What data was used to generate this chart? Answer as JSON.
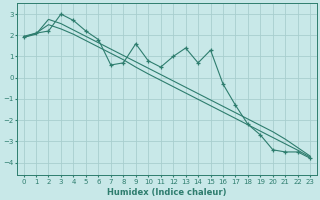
{
  "xlabel": "Humidex (Indice chaleur)",
  "ylabel": "",
  "background_color": "#c8e8e8",
  "grid_color": "#a8cece",
  "line_color": "#2e7d6e",
  "xlim": [
    -0.5,
    23.5
  ],
  "ylim": [
    -4.6,
    3.5
  ],
  "yticks": [
    -4,
    -3,
    -2,
    -1,
    0,
    1,
    2,
    3
  ],
  "xticks": [
    0,
    1,
    2,
    3,
    4,
    5,
    6,
    7,
    8,
    9,
    10,
    11,
    12,
    13,
    14,
    15,
    16,
    17,
    18,
    19,
    20,
    21,
    22,
    23
  ],
  "x_main": [
    0,
    1,
    2,
    3,
    4,
    5,
    6,
    7,
    8,
    9,
    10,
    11,
    12,
    13,
    14,
    15,
    16,
    17,
    18,
    19,
    20,
    21,
    22,
    23
  ],
  "y_main": [
    1.9,
    2.1,
    2.2,
    3.0,
    2.7,
    2.2,
    1.8,
    0.6,
    0.7,
    1.6,
    0.8,
    0.5,
    1.0,
    1.4,
    0.7,
    1.3,
    -0.3,
    -1.3,
    -2.2,
    -2.7,
    -3.4,
    -3.5,
    -3.5,
    -3.8
  ],
  "y_line1": [
    1.9,
    2.05,
    2.75,
    2.55,
    2.25,
    1.95,
    1.65,
    1.35,
    1.05,
    0.75,
    0.45,
    0.15,
    -0.15,
    -0.45,
    -0.75,
    -1.05,
    -1.35,
    -1.65,
    -1.95,
    -2.25,
    -2.55,
    -2.9,
    -3.3,
    -3.7
  ],
  "y_line2": [
    1.95,
    2.1,
    2.5,
    2.3,
    2.05,
    1.75,
    1.45,
    1.15,
    0.85,
    0.5,
    0.18,
    -0.12,
    -0.42,
    -0.72,
    -1.02,
    -1.32,
    -1.62,
    -1.92,
    -2.22,
    -2.52,
    -2.82,
    -3.12,
    -3.42,
    -3.75
  ]
}
